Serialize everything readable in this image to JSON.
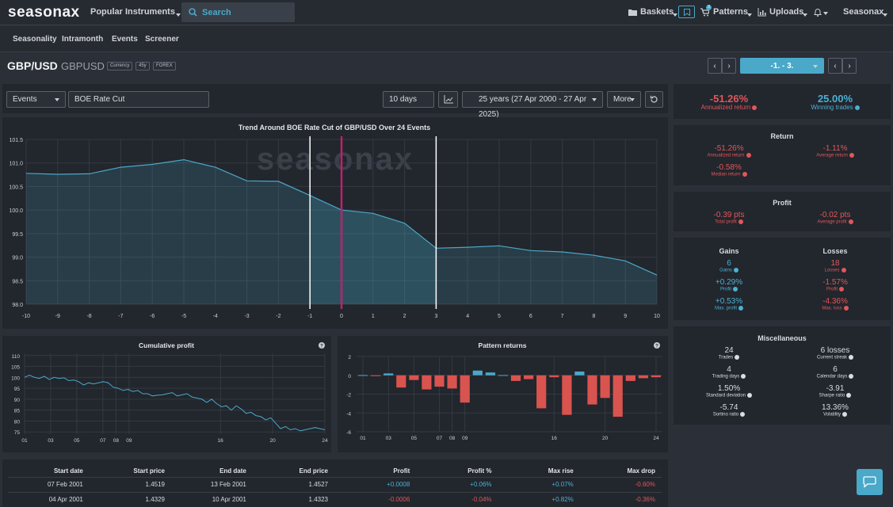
{
  "topbar": {
    "logo": "seasonax",
    "popular_instruments": "Popular Instruments",
    "search_placeholder": "Search",
    "baskets": "Baskets",
    "notifications_count": "3",
    "patterns": "Patterns",
    "uploads": "Uploads",
    "account": "Seasonax"
  },
  "subnav": [
    "Seasonality",
    "Intramonth",
    "Events",
    "Screener"
  ],
  "instrument": {
    "name": "GBP/USD",
    "ticker": "GBPUSD",
    "badges": [
      "Currency",
      "45y",
      "FOREX"
    ]
  },
  "controls": {
    "mode": "Events",
    "event": "BOE Rate Cut",
    "window": "10 days",
    "range": "25 years (27 Apr 2000 - 27 Apr 2025)",
    "more": "More",
    "pager": "-1. - 3."
  },
  "headline": {
    "annualized_return": "-51.26%",
    "annualized_return_label": "Annualized return",
    "winning_trades": "25.00%",
    "winning_trades_label": "Winning trades"
  },
  "stats": {
    "return_title": "Return",
    "annualized_return": "-51.26%",
    "annualized_return_label": "Annualized return",
    "average_return": "-1.11%",
    "average_return_label": "Average return",
    "median_return": "-0.58%",
    "median_return_label": "Median return",
    "profit_title": "Profit",
    "total_profit": "-0.39 pts",
    "total_profit_label": "Total profit",
    "average_profit": "-0.02 pts",
    "average_profit_label": "Average profit",
    "gains_title": "Gains",
    "losses_title": "Losses",
    "gains": "6",
    "gains_label": "Gains",
    "losses": "18",
    "losses_label": "Losses",
    "gain_profit": "+0.29%",
    "gain_profit_label": "Profit",
    "loss_profit": "-1.57%",
    "loss_profit_label": "Profit",
    "max_profit": "+0.53%",
    "max_profit_label": "Max. profit",
    "max_loss": "-4.36%",
    "max_loss_label": "Max. loss",
    "misc_title": "Miscellaneous",
    "trades": "24",
    "trades_label": "Trades",
    "current_streak": "6 losses",
    "current_streak_label": "Current streak",
    "trading_days": "4",
    "trading_days_label": "Trading days",
    "calendar_days": "6",
    "calendar_days_label": "Calendar days",
    "std_dev": "1.50%",
    "std_dev_label": "Standard deviation",
    "sharpe": "-3.91",
    "sharpe_label": "Sharpe ratio",
    "sortino": "-5.74",
    "sortino_label": "Sortino ratio",
    "volatility": "13.36%",
    "volatility_label": "Volatility"
  },
  "chart_data": [
    {
      "type": "area",
      "title": "Trend Around BOE Rate Cut of GBP/USD Over 24 Events",
      "watermark": "seasonax",
      "x": [
        -10,
        -9,
        -8,
        -7,
        -6,
        -5,
        -4,
        -3,
        -2,
        -1,
        0,
        1,
        2,
        3,
        4,
        5,
        6,
        7,
        8,
        9,
        10
      ],
      "values": [
        100.78,
        100.76,
        100.77,
        100.91,
        100.97,
        101.07,
        100.91,
        100.62,
        100.61,
        100.31,
        100.0,
        99.93,
        99.72,
        99.19,
        99.21,
        99.24,
        99.14,
        99.11,
        99.04,
        98.92,
        98.62
      ],
      "ylim": [
        98.0,
        101.5
      ],
      "yticks": [
        "101.5",
        "101.0",
        "100.5",
        "100.0",
        "99.5",
        "99.0",
        "98.5",
        "98.0"
      ],
      "xticks": [
        "-10",
        "-9",
        "-8",
        "-7",
        "-6",
        "-5",
        "-4",
        "-3",
        "-2",
        "-1",
        "0",
        "1",
        "2",
        "3",
        "4",
        "5",
        "6",
        "7",
        "8",
        "9",
        "10"
      ],
      "markers": [
        -1,
        0,
        3
      ],
      "colors": {
        "line": "#4aa8c9",
        "event": "#c0206a",
        "window": "#ffffff"
      }
    },
    {
      "type": "line",
      "title": "Cumulative profit",
      "values": [
        100,
        101,
        100,
        99.5,
        100.5,
        99,
        100,
        99.5,
        99.8,
        98.5,
        98.8,
        98,
        96.5,
        97.5,
        97,
        97.5,
        98,
        97.5,
        95.5,
        95,
        94,
        94.5,
        93.5,
        94,
        92.5,
        92.5,
        91.5,
        91.8,
        92,
        92.5,
        93,
        91.5,
        92,
        92.5,
        91,
        90.5,
        90,
        88.5,
        90,
        88,
        86.5,
        87,
        85,
        87,
        85.5,
        83.5,
        84,
        82.5,
        82,
        80.5,
        81.5,
        79,
        76.5,
        77.5,
        76,
        76.5,
        75.5,
        76,
        76.5,
        77,
        76.5,
        76
      ],
      "ylim": [
        74,
        111
      ],
      "yticks": [
        "110",
        "105",
        "100",
        "95",
        "90",
        "85",
        "80",
        "75"
      ],
      "xticks": [
        "01",
        "03",
        "05",
        "07",
        "08",
        "09",
        "16",
        "20",
        "24"
      ]
    },
    {
      "type": "bar",
      "title": "Pattern returns",
      "values": [
        0.02,
        -0.02,
        0.2,
        -1.3,
        -0.5,
        -1.5,
        -1.2,
        -1.4,
        -2.9,
        0.5,
        0.3,
        0.02,
        -0.6,
        -0.4,
        -3.5,
        -0.2,
        -4.2,
        0.4,
        -3.1,
        -2.4,
        -4.4,
        -0.6,
        -0.3,
        -0.2
      ],
      "ylim": [
        -6,
        2
      ],
      "yticks": [
        "2",
        "0",
        "-2",
        "-4",
        "-6"
      ],
      "xticks": [
        "01",
        "03",
        "05",
        "07",
        "08",
        "09",
        "16",
        "20",
        "24"
      ]
    }
  ],
  "table": {
    "headers": [
      "Start date",
      "Start price",
      "End date",
      "End price",
      "Profit",
      "Profit %",
      "Max rise",
      "Max drop"
    ],
    "rows": [
      [
        "07 Feb 2001",
        "1.4519",
        "13 Feb 2001",
        "1.4527",
        "+0.0008",
        "+0.06%",
        "+0.07%",
        "-0.60%"
      ],
      [
        "04 Apr 2001",
        "1.4329",
        "10 Apr 2001",
        "1.4323",
        "-0.0006",
        "-0.04%",
        "+0.82%",
        "-0.36%"
      ]
    ]
  }
}
